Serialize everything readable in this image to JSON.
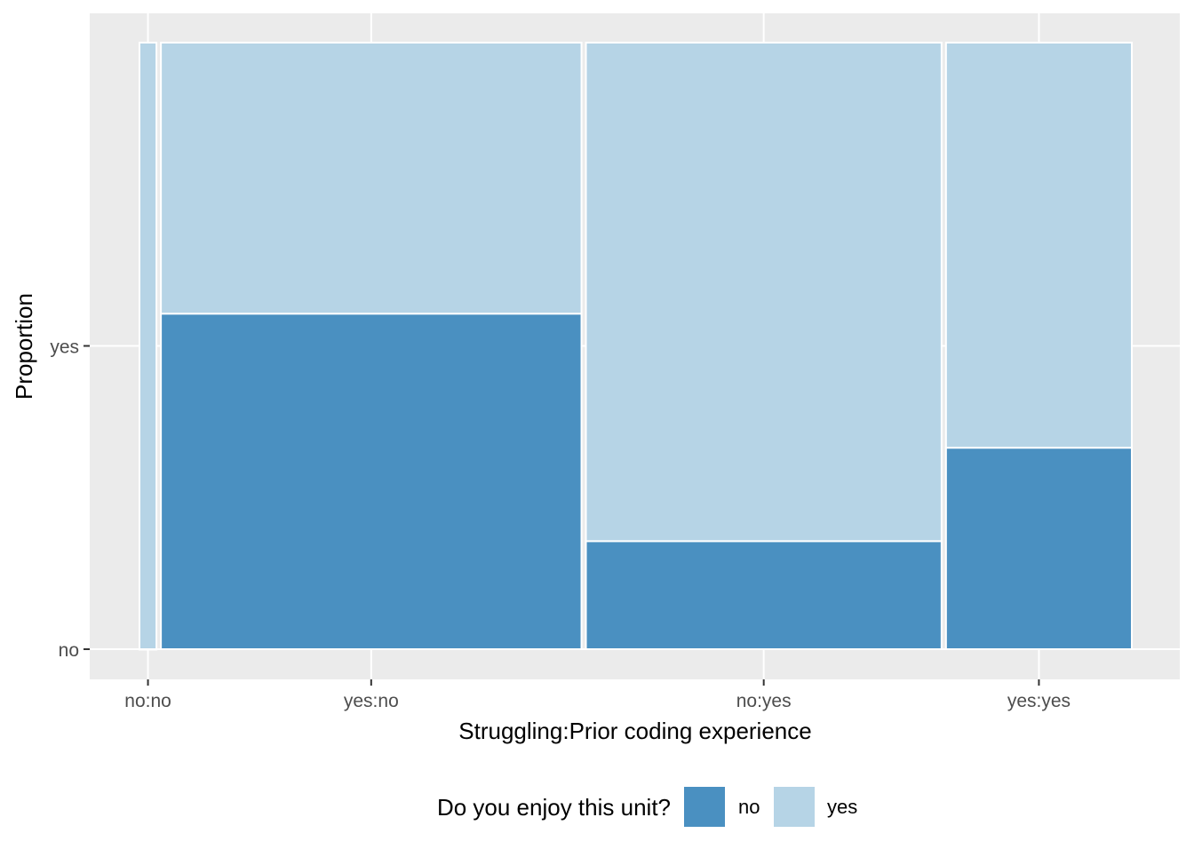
{
  "chart_data": {
    "type": "mosaic",
    "title": "",
    "xlabel": "Struggling:Prior coding experience",
    "ylabel": "Proportion",
    "x_ticks": [
      "no:no",
      "yes:no",
      "no:yes",
      "yes:yes"
    ],
    "y_ticks": [
      "no",
      "yes"
    ],
    "legend": {
      "title": "Do you enjoy this unit?",
      "position": "bottom",
      "entries": [
        {
          "label": "no",
          "color": "#4A90C1"
        },
        {
          "label": "yes",
          "color": "#B6D4E6"
        }
      ]
    },
    "categories": [
      "no:no",
      "yes:no",
      "no:yes",
      "yes:yes"
    ],
    "column_width_shares": [
      0.017,
      0.421,
      0.356,
      0.186
    ],
    "series": [
      {
        "name": "no",
        "values": [
          0.0,
          0.553,
          0.178,
          0.332
        ]
      },
      {
        "name": "yes",
        "values": [
          1.0,
          0.447,
          0.822,
          0.668
        ]
      }
    ],
    "colors": {
      "panel_background": "#EBEBEB",
      "grid": "#FFFFFF",
      "axis_text": "#4D4D4D",
      "title_text": "#000000"
    },
    "grid": true
  }
}
